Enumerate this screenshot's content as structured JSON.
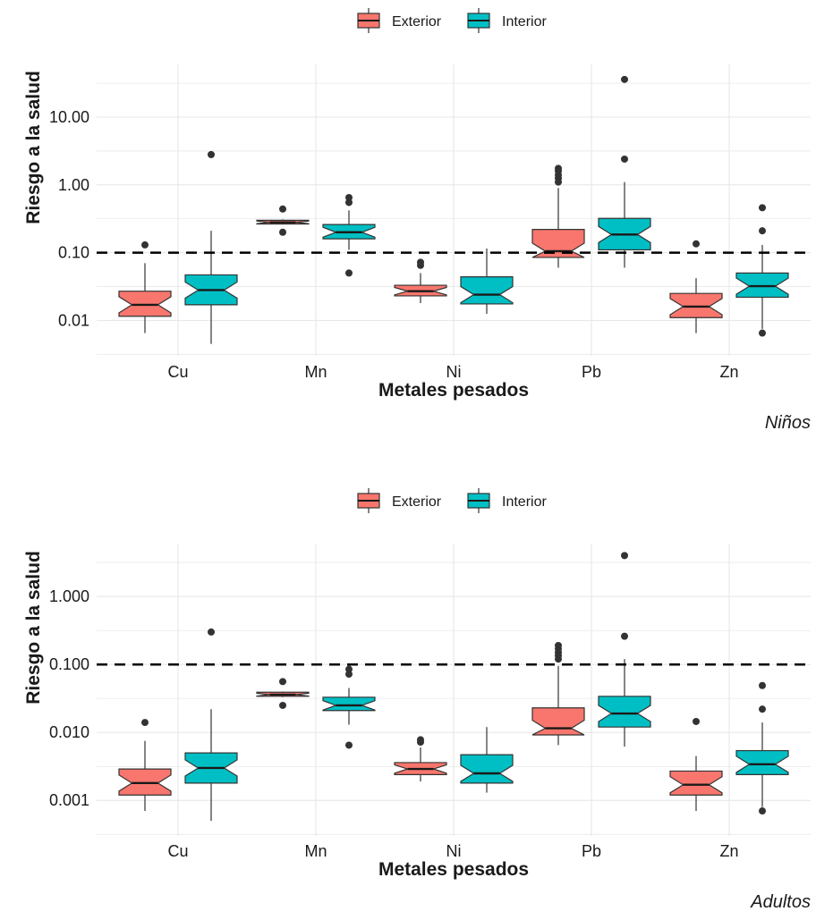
{
  "colors": {
    "exterior": "#F8766D",
    "interior": "#00BFC4",
    "grid": "#E5E5E5",
    "box_stroke": "#333333",
    "text": "#1a1a1a"
  },
  "chart_data": [
    {
      "type": "boxplot",
      "notched": true,
      "caption": "Niños",
      "xlabel": "Metales pesados",
      "ylabel": "Riesgo a la salud",
      "yscale": "log10",
      "ylim": [
        0.003,
        60
      ],
      "yticks": [
        0.01,
        0.1,
        1,
        10
      ],
      "ytick_labels": [
        "0.01",
        "0.10",
        "1.00",
        "10.00"
      ],
      "reference_line": 0.1,
      "grid": true,
      "legend_position": "top",
      "legend": [
        "Exterior",
        "Interior"
      ],
      "categories": [
        "Cu",
        "Mn",
        "Ni",
        "Pb",
        "Zn"
      ],
      "series": [
        {
          "name": "Exterior",
          "boxes": [
            {
              "min": 0.0065,
              "q1": 0.0115,
              "median": 0.017,
              "q3": 0.027,
              "max": 0.07,
              "outliers": [
                0.13
              ]
            },
            {
              "min": 0.26,
              "q1": 0.265,
              "median": 0.28,
              "q3": 0.3,
              "max": 0.31,
              "outliers": [
                0.2,
                0.44
              ]
            },
            {
              "min": 0.018,
              "q1": 0.023,
              "median": 0.027,
              "q3": 0.033,
              "max": 0.05,
              "outliers": [
                0.065,
                0.072
              ]
            },
            {
              "min": 0.06,
              "q1": 0.085,
              "median": 0.105,
              "q3": 0.22,
              "max": 0.9,
              "outliers": [
                1.1,
                1.25,
                1.4,
                1.6,
                1.75
              ]
            },
            {
              "min": 0.0065,
              "q1": 0.011,
              "median": 0.016,
              "q3": 0.025,
              "max": 0.042,
              "outliers": [
                0.135
              ]
            }
          ]
        },
        {
          "name": "Interior",
          "boxes": [
            {
              "min": 0.0045,
              "q1": 0.017,
              "median": 0.028,
              "q3": 0.047,
              "max": 0.21,
              "outliers": [
                2.8
              ]
            },
            {
              "min": 0.11,
              "q1": 0.16,
              "median": 0.2,
              "q3": 0.26,
              "max": 0.42,
              "outliers": [
                0.05,
                0.55,
                0.65
              ]
            },
            {
              "min": 0.0125,
              "q1": 0.0175,
              "median": 0.024,
              "q3": 0.044,
              "max": 0.115,
              "outliers": []
            },
            {
              "min": 0.06,
              "q1": 0.11,
              "median": 0.185,
              "q3": 0.32,
              "max": 1.1,
              "outliers": [
                2.4,
                36
              ]
            },
            {
              "min": 0.0075,
              "q1": 0.022,
              "median": 0.032,
              "q3": 0.05,
              "max": 0.13,
              "outliers": [
                0.0065,
                0.21,
                0.46
              ]
            }
          ]
        }
      ]
    },
    {
      "type": "boxplot",
      "notched": true,
      "caption": "Adultos",
      "xlabel": "Metales pesados",
      "ylabel": "Riesgo a la salud",
      "yscale": "log10",
      "ylim": [
        0.0003,
        6
      ],
      "yticks": [
        0.001,
        0.01,
        0.1,
        1
      ],
      "ytick_labels": [
        "0.001",
        "0.010",
        "0.100",
        "1.000"
      ],
      "reference_line": 0.1,
      "grid": true,
      "legend_position": "top",
      "legend": [
        "Exterior",
        "Interior"
      ],
      "categories": [
        "Cu",
        "Mn",
        "Ni",
        "Pb",
        "Zn"
      ],
      "series": [
        {
          "name": "Exterior",
          "boxes": [
            {
              "min": 0.0007,
              "q1": 0.0012,
              "median": 0.0018,
              "q3": 0.0029,
              "max": 0.0075,
              "outliers": [
                0.014
              ]
            },
            {
              "min": 0.033,
              "q1": 0.034,
              "median": 0.036,
              "q3": 0.039,
              "max": 0.04,
              "outliers": [
                0.025,
                0.056
              ]
            },
            {
              "min": 0.0019,
              "q1": 0.0024,
              "median": 0.0029,
              "q3": 0.0036,
              "max": 0.006,
              "outliers": [
                0.0072,
                0.0078
              ]
            },
            {
              "min": 0.0065,
              "q1": 0.0092,
              "median": 0.0115,
              "q3": 0.023,
              "max": 0.095,
              "outliers": [
                0.12,
                0.135,
                0.15,
                0.17,
                0.19
              ]
            },
            {
              "min": 0.0007,
              "q1": 0.0012,
              "median": 0.0017,
              "q3": 0.0027,
              "max": 0.0045,
              "outliers": [
                0.0145
              ]
            }
          ]
        },
        {
          "name": "Interior",
          "boxes": [
            {
              "min": 0.0005,
              "q1": 0.0018,
              "median": 0.003,
              "q3": 0.005,
              "max": 0.022,
              "outliers": [
                0.3
              ]
            },
            {
              "min": 0.013,
              "q1": 0.021,
              "median": 0.025,
              "q3": 0.033,
              "max": 0.045,
              "outliers": [
                0.0065,
                0.072,
                0.085
              ]
            },
            {
              "min": 0.0013,
              "q1": 0.0018,
              "median": 0.0025,
              "q3": 0.0047,
              "max": 0.012,
              "outliers": []
            },
            {
              "min": 0.0062,
              "q1": 0.012,
              "median": 0.019,
              "q3": 0.034,
              "max": 0.12,
              "outliers": [
                0.26,
                4
              ]
            },
            {
              "min": 0.0008,
              "q1": 0.0024,
              "median": 0.0034,
              "q3": 0.0054,
              "max": 0.014,
              "outliers": [
                0.0007,
                0.022,
                0.049
              ]
            }
          ]
        }
      ]
    }
  ]
}
